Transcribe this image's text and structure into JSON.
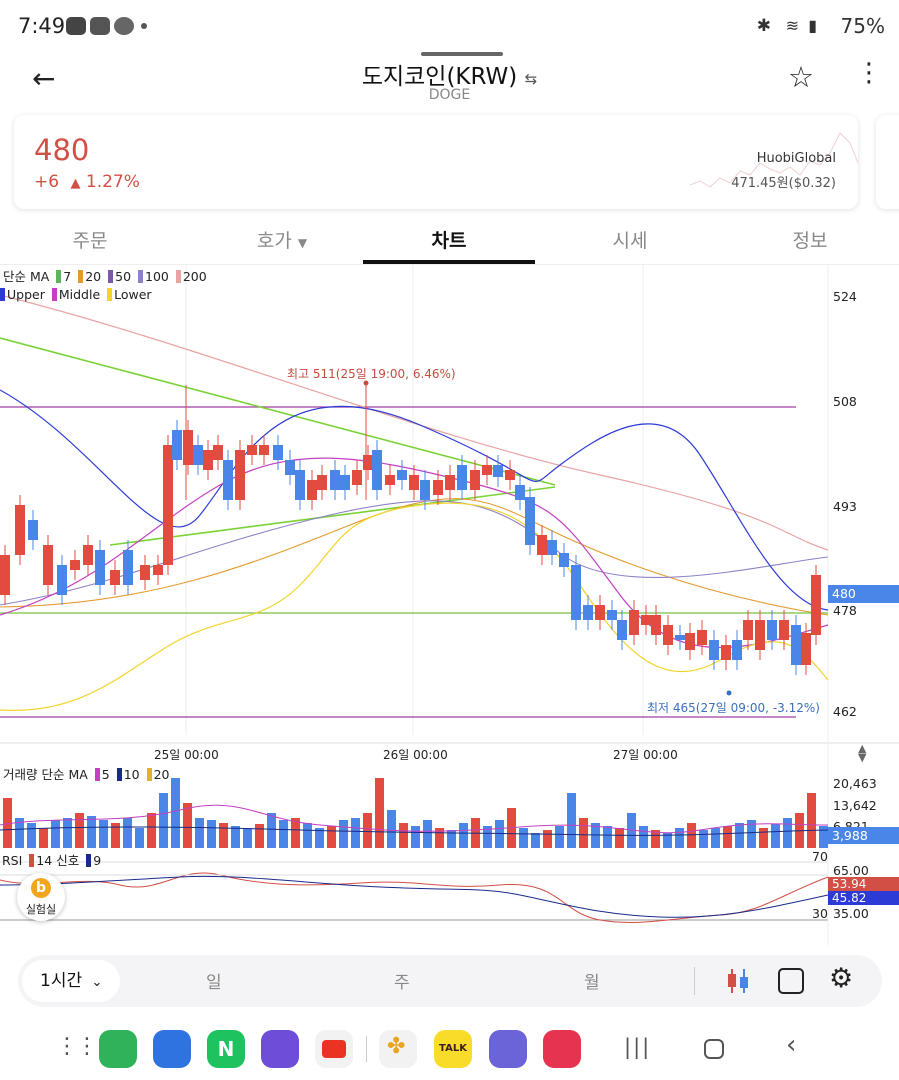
{
  "status_bar": {
    "time": "7:49",
    "battery": "75%"
  },
  "header": {
    "title": "도지코인(KRW)",
    "subtitle": "DOGE"
  },
  "price_card": {
    "price": "480",
    "change": "+6",
    "change_pct": "1.27%",
    "exchange": "HuobiGlobal",
    "exchange_price": "471.45원($0.32)",
    "color_up": "#d24f45"
  },
  "tabs": [
    {
      "label": "주문"
    },
    {
      "label": "호가"
    },
    {
      "label": "차트"
    },
    {
      "label": "시세"
    },
    {
      "label": "정보"
    }
  ],
  "chart": {
    "ma_legend": {
      "prefix": "단순 MA",
      "items": [
        "7",
        "20",
        "50",
        "100",
        "200"
      ],
      "colors": [
        "#5fb55f",
        "#e39a2d",
        "#7a5aa6",
        "#8e82c6",
        "#e8a3a3"
      ]
    },
    "bb_legend": {
      "items": [
        "Upper",
        "Middle",
        "Lower"
      ],
      "colors": [
        "#2c3bd6",
        "#c43fc4",
        "#f2d42b"
      ]
    },
    "high_label": "최고 511(25일 19:00, 6.46%)",
    "low_label": "최저 465(27일 09:00, -3.12%)",
    "price_axis": [
      "524",
      "508",
      "493",
      "478",
      "462"
    ],
    "current_price_tag": "480",
    "date_labels": [
      "25일 00:00",
      "26일 00:00",
      "27일 00:00"
    ],
    "volume_legend": {
      "prefix": "거래량 단순 MA",
      "items": [
        "5",
        "10",
        "20"
      ],
      "colors": [
        "#c43fc4",
        "#1a2a8a",
        "#e3b22d"
      ]
    },
    "volume_axis": [
      "20,463",
      "13,642",
      "6,821"
    ],
    "volume_tag": "3,988",
    "rsi_legend": {
      "prefix": "RSI",
      "period": "14",
      "signal_label": "신호",
      "signal": "9"
    },
    "rsi_axis": [
      "70",
      "65.00",
      "35.00",
      "30"
    ],
    "rsi_tags": [
      "53.94",
      "45.82"
    ],
    "badge_label": "실험실",
    "ohlc_range": [
      462,
      526
    ]
  },
  "toolbar": {
    "interval": "1시간",
    "options": [
      "일",
      "주",
      "월"
    ]
  }
}
